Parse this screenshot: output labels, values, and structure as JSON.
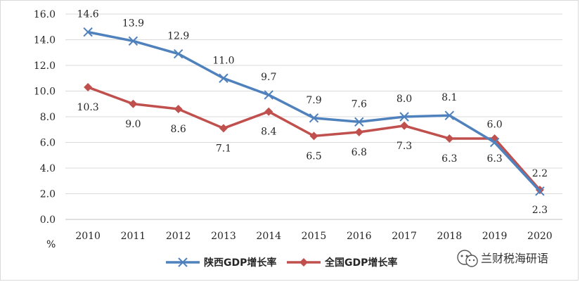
{
  "chart_data": {
    "type": "line",
    "title": "",
    "xlabel": "",
    "ylabel": "%",
    "categories": [
      "2010",
      "2011",
      "2012",
      "2013",
      "2014",
      "2015",
      "2016",
      "2017",
      "2018",
      "2019",
      "2020"
    ],
    "ylim": [
      0,
      16
    ],
    "yticks": [
      "0.0",
      "2.0",
      "4.0",
      "6.0",
      "8.0",
      "10.0",
      "12.0",
      "14.0",
      "16.0"
    ],
    "grid": true,
    "legend_position": "bottom",
    "series": [
      {
        "name": "陕西GDP增长率",
        "color": "#4f81bd",
        "marker": "x",
        "values": [
          14.6,
          13.9,
          12.9,
          11.0,
          9.7,
          7.9,
          7.6,
          8.0,
          8.1,
          6.0,
          2.2
        ],
        "labels": [
          "14.6",
          "13.9",
          "12.9",
          "11.0",
          "9.7",
          "7.9",
          "7.6",
          "8.0",
          "8.1",
          "6.0",
          "2.2"
        ]
      },
      {
        "name": "全国GDP增长率",
        "color": "#c0504d",
        "marker": "diamond",
        "values": [
          10.3,
          9.0,
          8.6,
          7.1,
          8.4,
          6.5,
          6.8,
          7.3,
          6.3,
          6.3,
          2.3
        ],
        "labels": [
          "10.3",
          "9.0",
          "8.6",
          "7.1",
          "8.4",
          "6.5",
          "6.8",
          "7.3",
          "6.3",
          "6.3",
          "2.3"
        ]
      }
    ]
  },
  "watermark": {
    "text": "兰财税海研语",
    "icon": "wechat-icon"
  }
}
